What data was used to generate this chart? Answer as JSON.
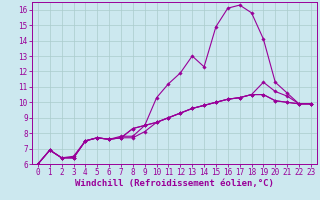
{
  "background_color": "#cce8ef",
  "grid_color": "#aacccc",
  "line_color": "#990099",
  "marker": "D",
  "markersize": 1.8,
  "linewidth": 0.8,
  "xlim": [
    -0.5,
    23.5
  ],
  "ylim": [
    6,
    16.5
  ],
  "xlabel": "Windchill (Refroidissement éolien,°C)",
  "xlabel_fontsize": 6.5,
  "tick_fontsize": 5.5,
  "series": [
    {
      "x": [
        0,
        1,
        2,
        3,
        4,
        5,
        6,
        7,
        8,
        9,
        10,
        11,
        12,
        13,
        14,
        15,
        16,
        17,
        18,
        19,
        20,
        21,
        22,
        23
      ],
      "y": [
        6.0,
        6.9,
        6.4,
        6.4,
        7.5,
        7.7,
        7.6,
        7.7,
        8.3,
        8.5,
        8.7,
        9.0,
        9.3,
        9.6,
        9.8,
        10.0,
        10.2,
        10.3,
        10.5,
        10.5,
        10.1,
        10.0,
        9.9,
        9.9
      ]
    },
    {
      "x": [
        0,
        1,
        2,
        3,
        4,
        5,
        6,
        7,
        8,
        9,
        10,
        11,
        12,
        13,
        14,
        15,
        16,
        17,
        18,
        19,
        20,
        21,
        22,
        23
      ],
      "y": [
        6.0,
        6.9,
        6.4,
        6.4,
        7.5,
        7.7,
        7.6,
        7.8,
        7.8,
        8.5,
        10.3,
        11.2,
        11.9,
        13.0,
        12.3,
        14.9,
        16.1,
        16.3,
        15.8,
        14.1,
        11.3,
        10.6,
        9.9,
        9.9
      ]
    },
    {
      "x": [
        0,
        1,
        2,
        3,
        4,
        5,
        6,
        7,
        8,
        9,
        10,
        11,
        12,
        13,
        14,
        15,
        16,
        17,
        18,
        19,
        20,
        21,
        22,
        23
      ],
      "y": [
        6.0,
        6.9,
        6.4,
        6.5,
        7.5,
        7.7,
        7.6,
        7.7,
        7.7,
        8.1,
        8.7,
        9.0,
        9.3,
        9.6,
        9.8,
        10.0,
        10.2,
        10.3,
        10.5,
        11.3,
        10.7,
        10.4,
        9.9,
        9.9
      ]
    },
    {
      "x": [
        0,
        1,
        2,
        3,
        4,
        5,
        6,
        7,
        8,
        9,
        10,
        11,
        12,
        13,
        14,
        15,
        16,
        17,
        18,
        19,
        20,
        21,
        22,
        23
      ],
      "y": [
        6.0,
        6.9,
        6.4,
        6.4,
        7.5,
        7.7,
        7.6,
        7.7,
        8.3,
        8.5,
        8.7,
        9.0,
        9.3,
        9.6,
        9.8,
        10.0,
        10.2,
        10.3,
        10.5,
        10.5,
        10.1,
        10.0,
        9.9,
        9.9
      ]
    }
  ]
}
